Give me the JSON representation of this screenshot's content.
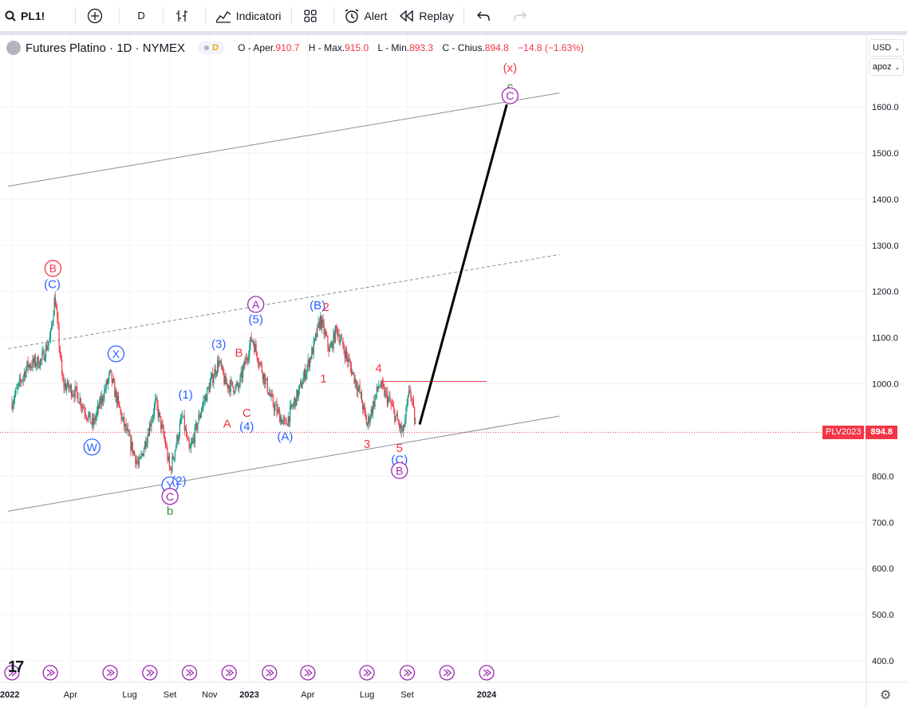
{
  "toolbar": {
    "symbol": "PL1!",
    "interval": "D",
    "indicators_label": "Indicatori",
    "alert_label": "Alert",
    "replay_label": "Replay"
  },
  "legend": {
    "title": "Futures Platino · 1D · NYMEX",
    "badge": "D",
    "o_label": "O - Aper.",
    "o_value": "910.7",
    "h_label": "H - Max.",
    "h_value": "915.0",
    "l_label": "L - Min.",
    "l_value": "893.3",
    "c_label": "C - Chius.",
    "c_value": "894.8",
    "change": "−14.8 (−1.63%)"
  },
  "right_controls": {
    "currency": "USD",
    "scale_mode": "apoz"
  },
  "price_tag": {
    "name": "PLV2023",
    "value": "894.8"
  },
  "colors": {
    "up": "#089981",
    "down": "#f23645",
    "wave_blue": "#2962ff",
    "wave_red": "#f23645",
    "wave_purple": "#9c27b0",
    "wave_green": "#388e3c",
    "grid": "#f0f3fa"
  },
  "chart_data": {
    "type": "candlestick",
    "title": "Futures Platino · 1D · NYMEX",
    "ylim": [
      380,
      1700
    ],
    "y_ticks": [
      400,
      500,
      600,
      700,
      800,
      900,
      1000,
      1100,
      1200,
      1300,
      1400,
      1500,
      1600
    ],
    "y_tick_labels": [
      "400.0",
      "500.0",
      "600.0",
      "700.0",
      "800.0",
      "900.0",
      "1000.0",
      "1100.0",
      "1200.0",
      "1300.0",
      "1400.0",
      "1500.0",
      "1600.0"
    ],
    "x_ticks": [
      {
        "date": "2022-01-01",
        "label": "2022"
      },
      {
        "date": "2022-04-01",
        "label": "Apr"
      },
      {
        "date": "2022-07-01",
        "label": "Lug"
      },
      {
        "date": "2022-09-01",
        "label": "Set"
      },
      {
        "date": "2022-11-01",
        "label": "Nov"
      },
      {
        "date": "2023-01-01",
        "label": "2023"
      },
      {
        "date": "2023-04-01",
        "label": "Apr"
      },
      {
        "date": "2023-07-01",
        "label": "Lug"
      },
      {
        "date": "2023-09-01",
        "label": "Set"
      },
      {
        "date": "2024-01-01",
        "label": "2024"
      }
    ],
    "price_path": [
      {
        "date": "2022-01-01",
        "price": 960
      },
      {
        "date": "2022-01-25",
        "price": 1040
      },
      {
        "date": "2022-02-15",
        "price": 1050
      },
      {
        "date": "2022-03-01",
        "price": 1100
      },
      {
        "date": "2022-03-08",
        "price": 1190
      },
      {
        "date": "2022-03-20",
        "price": 1000
      },
      {
        "date": "2022-04-10",
        "price": 980
      },
      {
        "date": "2022-05-05",
        "price": 910
      },
      {
        "date": "2022-06-01",
        "price": 1020
      },
      {
        "date": "2022-06-20",
        "price": 920
      },
      {
        "date": "2022-07-15",
        "price": 820
      },
      {
        "date": "2022-08-10",
        "price": 960
      },
      {
        "date": "2022-08-25",
        "price": 870
      },
      {
        "date": "2022-09-01",
        "price": 810
      },
      {
        "date": "2022-09-20",
        "price": 930
      },
      {
        "date": "2022-10-01",
        "price": 850
      },
      {
        "date": "2022-10-20",
        "price": 950
      },
      {
        "date": "2022-11-15",
        "price": 1050
      },
      {
        "date": "2022-11-25",
        "price": 1000
      },
      {
        "date": "2022-12-15",
        "price": 990
      },
      {
        "date": "2023-01-05",
        "price": 1100
      },
      {
        "date": "2023-02-05",
        "price": 960
      },
      {
        "date": "2023-02-25",
        "price": 910
      },
      {
        "date": "2023-03-20",
        "price": 990
      },
      {
        "date": "2023-04-10",
        "price": 1080
      },
      {
        "date": "2023-04-20",
        "price": 1140
      },
      {
        "date": "2023-05-05",
        "price": 1070
      },
      {
        "date": "2023-05-15",
        "price": 1120
      },
      {
        "date": "2023-06-20",
        "price": 980
      },
      {
        "date": "2023-07-01",
        "price": 910
      },
      {
        "date": "2023-07-20",
        "price": 1000
      },
      {
        "date": "2023-08-05",
        "price": 960
      },
      {
        "date": "2023-08-25",
        "price": 890
      },
      {
        "date": "2023-09-05",
        "price": 990
      },
      {
        "date": "2023-09-15",
        "price": 895
      }
    ],
    "channel_lines": [
      {
        "style": "solid",
        "from": {
          "date": "2021-12-26",
          "price": 1428
        },
        "to": {
          "date": "2024-04-22",
          "price": 1630
        }
      },
      {
        "style": "dashed",
        "from": {
          "date": "2021-12-26",
          "price": 1076
        },
        "to": {
          "date": "2024-04-22",
          "price": 1280
        }
      },
      {
        "style": "solid",
        "from": {
          "date": "2021-12-26",
          "price": 724
        },
        "to": {
          "date": "2024-04-22",
          "price": 930
        }
      }
    ],
    "resistance_line": {
      "from": {
        "date": "2023-07-25",
        "price": 1005
      },
      "to": {
        "date": "2024-01-01",
        "price": 1005
      }
    },
    "current_price_line": 894.8,
    "projection": {
      "from": {
        "date": "2023-09-20",
        "price": 912
      },
      "to": {
        "date": "2024-02-01",
        "price": 1605
      }
    },
    "wave_labels": [
      {
        "text": "B",
        "date": "2022-03-05",
        "price": 1250,
        "color": "#f23645",
        "circled": true
      },
      {
        "text": "(C)",
        "date": "2022-03-04",
        "price": 1216,
        "color": "#2962ff",
        "circled": false
      },
      {
        "text": "X",
        "date": "2022-06-10",
        "price": 1065,
        "color": "#2962ff",
        "circled": true
      },
      {
        "text": "W",
        "date": "2022-05-04",
        "price": 863,
        "color": "#2962ff",
        "circled": true
      },
      {
        "text": "Y",
        "date": "2022-09-01",
        "price": 781,
        "color": "#2962ff",
        "circled": true
      },
      {
        "text": "C",
        "date": "2022-09-01",
        "price": 756,
        "color": "#9c27b0",
        "circled": true
      },
      {
        "text": "b",
        "date": "2022-09-01",
        "price": 725,
        "color": "#388e3c",
        "circled": false
      },
      {
        "text": "(2)",
        "date": "2022-09-15",
        "price": 790,
        "color": "#2962ff",
        "circled": false
      },
      {
        "text": "(1)",
        "date": "2022-09-25",
        "price": 977,
        "color": "#2962ff",
        "circled": false
      },
      {
        "text": "(3)",
        "date": "2022-11-15",
        "price": 1086,
        "color": "#2962ff",
        "circled": false
      },
      {
        "text": "A",
        "date": "2022-11-28",
        "price": 914,
        "color": "#f23645",
        "circled": false
      },
      {
        "text": "B",
        "date": "2022-12-16",
        "price": 1067,
        "color": "#f23645",
        "circled": false
      },
      {
        "text": "C",
        "date": "2022-12-28",
        "price": 937,
        "color": "#f23645",
        "circled": false
      },
      {
        "text": "(4)",
        "date": "2022-12-28",
        "price": 908,
        "color": "#2962ff",
        "circled": false
      },
      {
        "text": "A",
        "date": "2023-01-11",
        "price": 1172,
        "color": "#9c27b0",
        "circled": true
      },
      {
        "text": "(5)",
        "date": "2023-01-11",
        "price": 1140,
        "color": "#2962ff",
        "circled": false
      },
      {
        "text": "(A)",
        "date": "2023-02-25",
        "price": 886,
        "color": "#2962ff",
        "circled": false
      },
      {
        "text": "(B)",
        "date": "2023-04-16",
        "price": 1170,
        "color": "#2962ff",
        "circled": false
      },
      {
        "text": "2",
        "date": "2023-04-29",
        "price": 1167,
        "color": "#f23645",
        "circled": false
      },
      {
        "text": "1",
        "date": "2023-04-25",
        "price": 1011,
        "color": "#f23645",
        "circled": false
      },
      {
        "text": "3",
        "date": "2023-07-01",
        "price": 870,
        "color": "#f23645",
        "circled": false
      },
      {
        "text": "4",
        "date": "2023-07-19",
        "price": 1034,
        "color": "#f23645",
        "circled": false
      },
      {
        "text": "5",
        "date": "2023-08-20",
        "price": 861,
        "color": "#f23645",
        "circled": false
      },
      {
        "text": "(C)",
        "date": "2023-08-20",
        "price": 836,
        "color": "#2962ff",
        "circled": false
      },
      {
        "text": "B",
        "date": "2023-08-20",
        "price": 812,
        "color": "#9c27b0",
        "circled": true
      },
      {
        "text": "(x)",
        "date": "2024-02-06",
        "price": 1685,
        "color": "#f23645",
        "circled": false
      },
      {
        "text": "c",
        "date": "2024-02-06",
        "price": 1644,
        "color": "#388e3c",
        "circled": false
      },
      {
        "text": "C",
        "date": "2024-02-06",
        "price": 1624,
        "color": "#9c27b0",
        "circled": true
      }
    ],
    "replay_markers": [
      "2022-01-01",
      "2022-03-01",
      "2022-06-01",
      "2022-08-01",
      "2022-10-01",
      "2022-12-01",
      "2023-02-01",
      "2023-04-01",
      "2023-07-01",
      "2023-09-01",
      "2023-11-01",
      "2024-01-01"
    ]
  }
}
